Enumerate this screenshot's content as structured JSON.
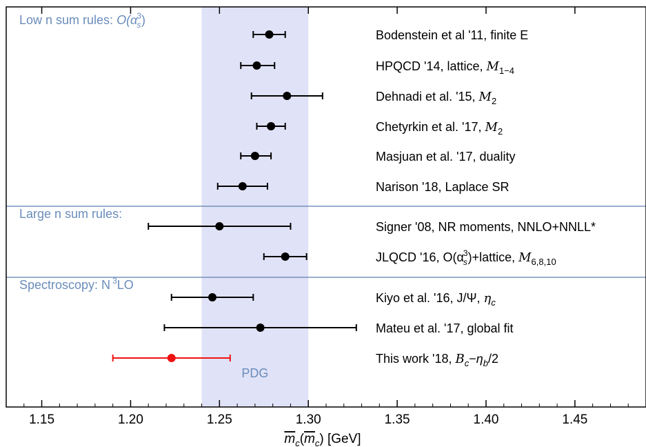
{
  "chart_data": {
    "type": "scatter",
    "xlabel_parts": [
      "m",
      "(",
      "m",
      ") [GeV]"
    ],
    "xlabel_sub": "c",
    "xlim": [
      1.13,
      1.49
    ],
    "xticks": [
      "1.15",
      "1.20",
      "1.25",
      "1.30",
      "1.35",
      "1.40",
      "1.45"
    ],
    "tick_values": [
      1.15,
      1.2,
      1.25,
      1.3,
      1.35,
      1.4,
      1.45
    ],
    "band": {
      "label": "PDG",
      "range": [
        1.24,
        1.3
      ],
      "color": "#e0e2f7"
    },
    "sections": [
      {
        "title_text": "Low n sum rules: ",
        "title_math": "O(α",
        "title_sub": "s",
        "title_sup": "3",
        "title_close": ")",
        "color": "#6a8cba"
      },
      {
        "title_text": "Large n sum rules:",
        "color": "#6a8cba"
      },
      {
        "title_text": "Spectroscopy: N",
        "title_sup": "3",
        "title_close": "LO",
        "color": "#6a8cba"
      }
    ],
    "points": [
      {
        "label": "Bodenstein et al '11, finite E",
        "x": 1.278,
        "xmin": 1.269,
        "xmax": 1.287,
        "capped": true,
        "color": "#000000"
      },
      {
        "label_text": "HPQCD '14, lattice, ",
        "label_math": "M",
        "label_sub": "1−4",
        "x": 1.271,
        "xmin": 1.262,
        "xmax": 1.281,
        "capped": true,
        "color": "#000000"
      },
      {
        "label_text": "Dehnadi et al. '15, ",
        "label_math": "M",
        "label_sub": "2",
        "x": 1.288,
        "xmin": 1.268,
        "xmax": 1.308,
        "capped": true,
        "color": "#000000"
      },
      {
        "label_text": "Chetyrkin et al. '17, ",
        "label_math": "M",
        "label_sub": "2",
        "x": 1.279,
        "xmin": 1.271,
        "xmax": 1.287,
        "capped": true,
        "color": "#000000"
      },
      {
        "label": "Masjuan et al. '17, duality",
        "x": 1.27,
        "xmin": 1.262,
        "xmax": 1.279,
        "capped": true,
        "color": "#000000"
      },
      {
        "label": "Narison '18, Laplace SR",
        "x": 1.263,
        "xmin": 1.249,
        "xmax": 1.277,
        "capped": true,
        "color": "#000000"
      },
      {
        "label": "Signer '08, NR moments, NNLO+NNLL*",
        "x": 1.25,
        "xmin": 1.21,
        "xmax": 1.29,
        "capped": true,
        "color": "#000000"
      },
      {
        "label_text": "JLQCD '16, O(α",
        "label_sub2": "s",
        "label_sup2": "3",
        "label_mid": ")+lattice, ",
        "label_math": "M",
        "label_sub": "6,8,10",
        "x": 1.287,
        "xmin": 1.275,
        "xmax": 1.299,
        "capped": true,
        "color": "#000000"
      },
      {
        "label_text": "Kiyo et al. '16, J/Ψ, ",
        "label_math": "η",
        "label_sub": "c",
        "x": 1.246,
        "xmin": 1.223,
        "xmax": 1.269,
        "capped": true,
        "color": "#000000"
      },
      {
        "label": "Mateu et al. '17, global fit",
        "x": 1.273,
        "xmin": 1.219,
        "xmax": 1.327,
        "capped": true,
        "color": "#000000"
      },
      {
        "label_text": "This work '18, ",
        "label_math": "B",
        "label_sub": "c",
        "label_mid2": "−",
        "label_math2": "η",
        "label_sub3": "b",
        "label_tail": "/2",
        "x": 1.223,
        "xmin": 1.19,
        "xmax": 1.256,
        "capped": true,
        "color": "#ee1111"
      }
    ]
  }
}
